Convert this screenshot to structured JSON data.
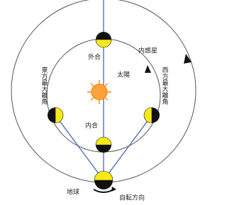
{
  "labels": {
    "superior_conjunction": "外合",
    "inner_planet": "内惑星",
    "sun": "太陽",
    "east_elongation": "東方最大離角",
    "west_elongation": "西方最大離角",
    "inferior_conjunction": "内合",
    "earth": "地球",
    "rotation": "自転方向"
  }
}
